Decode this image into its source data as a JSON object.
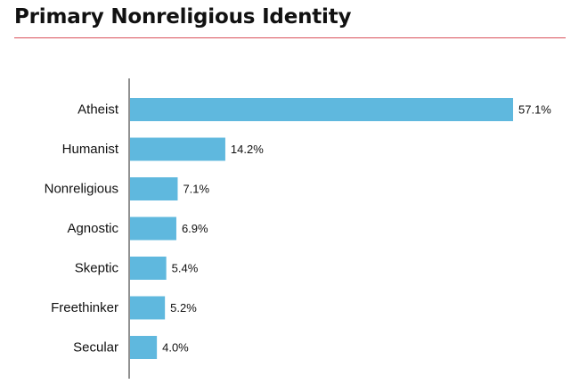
{
  "title": "Primary Nonreligious Identity",
  "colors": {
    "bar": "#5fb8de",
    "rule": "#d9515a",
    "axis": "#222222"
  },
  "chart_data": {
    "type": "bar",
    "orientation": "horizontal",
    "title": "Primary Nonreligious Identity",
    "categories": [
      "Atheist",
      "Humanist",
      "Nonreligious",
      "Agnostic",
      "Skeptic",
      "Freethinker",
      "Secular"
    ],
    "values": [
      57.1,
      14.2,
      7.1,
      6.9,
      5.4,
      5.2,
      4.0
    ],
    "value_labels": [
      "57.1%",
      "14.2%",
      "7.1%",
      "6.9%",
      "5.4%",
      "5.2%",
      "4.0%"
    ],
    "xlim": [
      0,
      57.1
    ],
    "grid": false,
    "legend": "none"
  }
}
